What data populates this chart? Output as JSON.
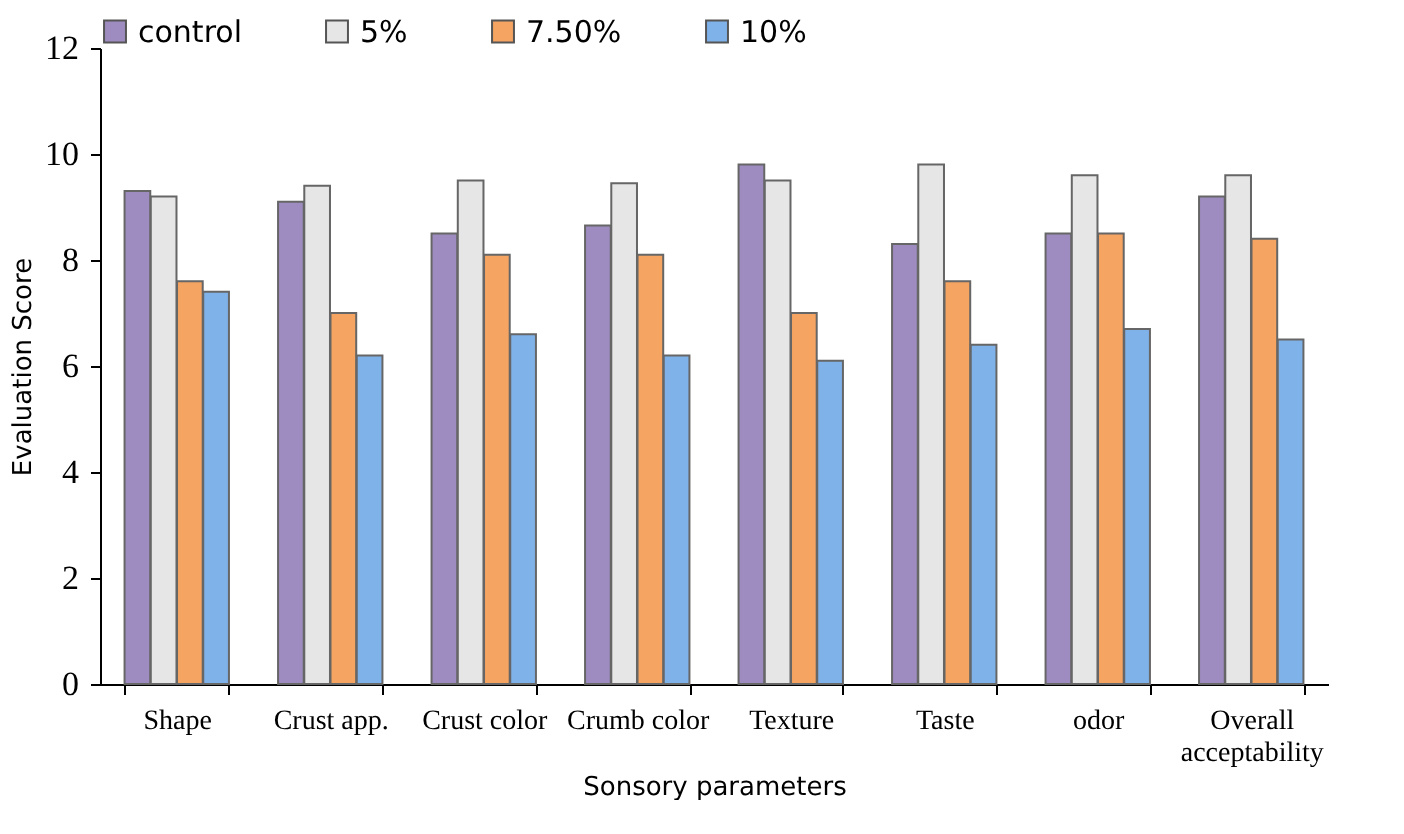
{
  "chart_data": {
    "type": "bar",
    "xlabel": "Sonsory parameters",
    "ylabel": "Evaluation Score",
    "categories": [
      "Shape",
      "Crust app.",
      "Crust color",
      "Crumb color",
      "Texture",
      "Taste",
      "odor",
      "Overall acceptability"
    ],
    "series": [
      {
        "name": "control",
        "color": "#9e8cc0",
        "values": [
          9.3,
          9.1,
          8.5,
          8.65,
          9.8,
          8.3,
          8.5,
          9.2
        ]
      },
      {
        "name": "5%",
        "color": "#e6e6e6",
        "values": [
          9.2,
          9.4,
          9.5,
          9.45,
          9.5,
          9.8,
          9.6,
          9.6
        ]
      },
      {
        "name": "7.50%",
        "color": "#f5a462",
        "values": [
          7.6,
          7.0,
          8.1,
          8.1,
          7.0,
          7.6,
          8.5,
          8.4
        ]
      },
      {
        "name": "10%",
        "color": "#80b2ea",
        "values": [
          7.4,
          6.2,
          6.6,
          6.2,
          6.1,
          6.4,
          6.7,
          6.5
        ]
      }
    ],
    "ylim": [
      0,
      12
    ],
    "yticks": [
      0,
      2,
      4,
      6,
      8,
      10,
      12
    ],
    "grid": false,
    "legend": "top"
  }
}
